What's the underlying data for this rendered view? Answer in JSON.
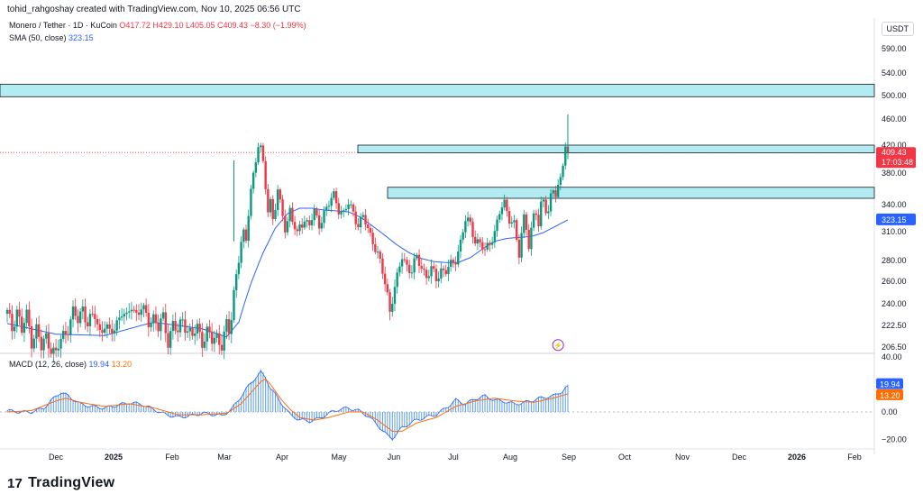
{
  "header": {
    "credit": "tohid_rahgoshay created with TradingView.com, Nov 10, 2025 06:56 UTC"
  },
  "legend": {
    "symbol": "Monero / Tether · 1D · KuCoin",
    "ohlc": "O417.72 H429.10 L405.05 C409.43 −8.30 (−1.99%)",
    "sma_label": "SMA (50, close)",
    "sma_value": "323.15"
  },
  "currency": "USDT",
  "macd_legend": {
    "label": "MACD (12, 26, close)",
    "macd": "19.94",
    "signal": "13.20"
  },
  "brand": {
    "name": "TradingView",
    "logo": "17"
  },
  "colors": {
    "up": "#089981",
    "down": "#f23645",
    "sma": "#2962ff",
    "zone_fill": "#b2ebf2",
    "macd": "#2962ff",
    "signal": "#ff6d00",
    "price_tag": "#f23645"
  },
  "chart_data": [
    {
      "type": "candlestick",
      "title": "Monero / Tether · 1D · KuCoin",
      "x_labels": [
        "Dec",
        "2025",
        "Feb",
        "Mar",
        "Apr",
        "May",
        "Jun",
        "Jul",
        "Aug",
        "Sep",
        "Oct",
        "Nov",
        "Dec",
        "2026",
        "Feb"
      ],
      "y_ticks": [
        "590.00",
        "540.00",
        "500.00",
        "460.00",
        "420.00",
        "380.00",
        "340.00",
        "310.00",
        "280.00",
        "260.00",
        "240.00",
        "222.50",
        "206.50"
      ],
      "y_tick_values": [
        590,
        540,
        500,
        460,
        420,
        380,
        340,
        310,
        280,
        260,
        240,
        222.5,
        206.5
      ],
      "ylim": [
        196,
        620
      ],
      "zones": [
        {
          "low": 498,
          "high": 520
        },
        {
          "low": 409,
          "high": 420
        },
        {
          "low": 348,
          "high": 362
        }
      ],
      "last_price": {
        "value": 409.43,
        "label": "409.43",
        "countdown": "17:03:48"
      },
      "sma_tag": {
        "value": 323.15,
        "label": "323.15"
      },
      "annotations": [
        "lightning-marker"
      ],
      "price_path": [
        [
          0,
          232
        ],
        [
          2,
          220
        ],
        [
          4,
          236
        ],
        [
          6,
          218
        ],
        [
          8,
          230
        ],
        [
          10,
          212
        ],
        [
          12,
          220
        ],
        [
          14,
          205
        ],
        [
          16,
          214
        ],
        [
          20,
          200
        ],
        [
          22,
          212
        ],
        [
          25,
          222
        ],
        [
          27,
          232
        ],
        [
          29,
          226
        ],
        [
          31,
          238
        ],
        [
          33,
          224
        ],
        [
          36,
          230
        ],
        [
          38,
          218
        ],
        [
          40,
          224
        ],
        [
          42,
          214
        ],
        [
          44,
          222
        ],
        [
          47,
          234
        ],
        [
          49,
          226
        ],
        [
          51,
          240
        ],
        [
          53,
          232
        ],
        [
          55,
          236
        ],
        [
          58,
          226
        ],
        [
          60,
          230
        ],
        [
          62,
          220
        ],
        [
          64,
          228
        ],
        [
          66,
          212
        ],
        [
          68,
          224
        ],
        [
          70,
          216
        ],
        [
          72,
          228
        ],
        [
          74,
          220
        ],
        [
          76,
          214
        ],
        [
          78,
          220
        ],
        [
          80,
          212
        ],
        [
          82,
          218
        ],
        [
          84,
          210
        ],
        [
          86,
          214
        ],
        [
          88,
          210
        ],
        [
          90,
          222
        ],
        [
          91,
          216
        ],
        [
          92,
          228
        ],
        [
          93,
          250
        ],
        [
          94,
          268
        ],
        [
          95,
          284
        ],
        [
          96,
          300
        ],
        [
          97,
          306
        ],
        [
          98,
          298
        ],
        [
          99,
          330
        ],
        [
          100,
          360
        ],
        [
          101,
          380
        ],
        [
          102,
          400
        ],
        [
          103,
          420
        ],
        [
          104,
          414
        ],
        [
          105,
          392
        ],
        [
          106,
          362
        ],
        [
          107,
          334
        ],
        [
          108,
          346
        ],
        [
          109,
          326
        ],
        [
          110,
          338
        ],
        [
          111,
          356
        ],
        [
          112,
          340
        ],
        [
          113,
          328
        ],
        [
          114,
          314
        ],
        [
          115,
          322
        ],
        [
          116,
          336
        ],
        [
          117,
          324
        ],
        [
          118,
          312
        ],
        [
          119,
          304
        ],
        [
          120,
          316
        ],
        [
          122,
          324
        ],
        [
          124,
          318
        ],
        [
          126,
          330
        ],
        [
          128,
          318
        ],
        [
          130,
          332
        ],
        [
          132,
          340
        ],
        [
          134,
          352
        ],
        [
          136,
          336
        ],
        [
          138,
          330
        ],
        [
          140,
          340
        ],
        [
          142,
          332
        ],
        [
          144,
          318
        ],
        [
          146,
          326
        ],
        [
          148,
          312
        ],
        [
          150,
          302
        ],
        [
          152,
          286
        ],
        [
          154,
          268
        ],
        [
          155,
          258
        ],
        [
          156,
          248
        ],
        [
          157,
          236
        ],
        [
          158,
          246
        ],
        [
          160,
          262
        ],
        [
          162,
          284
        ],
        [
          164,
          276
        ],
        [
          166,
          270
        ],
        [
          168,
          282
        ],
        [
          170,
          274
        ],
        [
          172,
          266
        ],
        [
          174,
          270
        ],
        [
          176,
          262
        ],
        [
          178,
          272
        ],
        [
          180,
          270
        ],
        [
          182,
          274
        ],
        [
          184,
          282
        ],
        [
          186,
          300
        ],
        [
          188,
          322
        ],
        [
          190,
          318
        ],
        [
          192,
          302
        ],
        [
          194,
          298
        ],
        [
          196,
          288
        ],
        [
          198,
          300
        ],
        [
          200,
          310
        ],
        [
          202,
          330
        ],
        [
          204,
          342
        ],
        [
          206,
          326
        ],
        [
          208,
          318
        ],
        [
          209,
          300
        ],
        [
          210,
          284
        ],
        [
          211,
          306
        ],
        [
          212,
          328
        ],
        [
          213,
          318
        ],
        [
          214,
          296
        ],
        [
          215,
          310
        ],
        [
          216,
          326
        ],
        [
          217,
          330
        ],
        [
          218,
          316
        ],
        [
          219,
          342
        ],
        [
          220,
          350
        ],
        [
          221,
          336
        ],
        [
          222,
          330
        ],
        [
          223,
          348
        ],
        [
          224,
          358
        ],
        [
          225,
          352
        ],
        [
          226,
          364
        ],
        [
          227,
          376
        ],
        [
          228,
          396
        ],
        [
          229,
          418
        ],
        [
          230,
          409.43
        ]
      ],
      "sma_path": [
        [
          0,
          224
        ],
        [
          20,
          216
        ],
        [
          40,
          215
        ],
        [
          60,
          225
        ],
        [
          80,
          220
        ],
        [
          90,
          214
        ],
        [
          95,
          225
        ],
        [
          100,
          258
        ],
        [
          105,
          288
        ],
        [
          110,
          314
        ],
        [
          115,
          330
        ],
        [
          120,
          336
        ],
        [
          125,
          336
        ],
        [
          130,
          334
        ],
        [
          135,
          333
        ],
        [
          140,
          332
        ],
        [
          145,
          326
        ],
        [
          150,
          316
        ],
        [
          155,
          306
        ],
        [
          160,
          296
        ],
        [
          165,
          288
        ],
        [
          170,
          282
        ],
        [
          175,
          279
        ],
        [
          180,
          278
        ],
        [
          185,
          278
        ],
        [
          190,
          283
        ],
        [
          195,
          292
        ],
        [
          200,
          300
        ],
        [
          205,
          303
        ],
        [
          210,
          304
        ],
        [
          215,
          305
        ],
        [
          220,
          309
        ],
        [
          225,
          316
        ],
        [
          230,
          323.15
        ]
      ]
    },
    {
      "type": "macd",
      "title": "MACD (12, 26, close)",
      "y_ticks": [
        "40.00",
        "0.00",
        "−20.00"
      ],
      "y_tick_values": [
        40,
        0,
        -20
      ],
      "ylim": [
        -27,
        42
      ],
      "last_macd": {
        "value": 19.94,
        "label": "19.94"
      },
      "last_signal": {
        "value": 13.2,
        "label": "13.20"
      },
      "hist_path": [
        [
          0,
          1
        ],
        [
          5,
          0
        ],
        [
          10,
          0
        ],
        [
          15,
          3
        ],
        [
          20,
          12
        ],
        [
          22,
          15
        ],
        [
          25,
          12
        ],
        [
          30,
          6
        ],
        [
          35,
          4
        ],
        [
          40,
          3
        ],
        [
          45,
          5
        ],
        [
          50,
          7
        ],
        [
          55,
          6
        ],
        [
          60,
          2
        ],
        [
          65,
          -2
        ],
        [
          70,
          -4
        ],
        [
          75,
          -3
        ],
        [
          80,
          -1
        ],
        [
          85,
          -2
        ],
        [
          88,
          -3
        ],
        [
          92,
          2
        ],
        [
          96,
          12
        ],
        [
          100,
          22
        ],
        [
          104,
          30
        ],
        [
          106,
          26
        ],
        [
          108,
          18
        ],
        [
          112,
          8
        ],
        [
          116,
          -2
        ],
        [
          120,
          -6
        ],
        [
          124,
          -7
        ],
        [
          128,
          -5
        ],
        [
          132,
          -1
        ],
        [
          136,
          2
        ],
        [
          140,
          3
        ],
        [
          144,
          1
        ],
        [
          148,
          -3
        ],
        [
          152,
          -10
        ],
        [
          156,
          -18
        ],
        [
          158,
          -20
        ],
        [
          162,
          -12
        ],
        [
          168,
          -6
        ],
        [
          176,
          -2
        ],
        [
          180,
          3
        ],
        [
          184,
          9
        ],
        [
          188,
          6
        ],
        [
          192,
          10
        ],
        [
          196,
          12
        ],
        [
          200,
          9
        ],
        [
          204,
          8
        ],
        [
          208,
          6
        ],
        [
          212,
          7
        ],
        [
          216,
          9
        ],
        [
          220,
          11
        ],
        [
          224,
          12
        ],
        [
          228,
          16
        ],
        [
          230,
          20
        ]
      ],
      "signal_path": [
        [
          0,
          0
        ],
        [
          10,
          1
        ],
        [
          20,
          8
        ],
        [
          24,
          10
        ],
        [
          30,
          7
        ],
        [
          40,
          4
        ],
        [
          50,
          6
        ],
        [
          60,
          3
        ],
        [
          70,
          -2
        ],
        [
          80,
          -2
        ],
        [
          90,
          -1
        ],
        [
          96,
          6
        ],
        [
          100,
          14
        ],
        [
          104,
          22
        ],
        [
          106,
          24
        ],
        [
          108,
          20
        ],
        [
          112,
          10
        ],
        [
          116,
          2
        ],
        [
          120,
          -4
        ],
        [
          126,
          -6
        ],
        [
          132,
          -4
        ],
        [
          140,
          0
        ],
        [
          146,
          0
        ],
        [
          152,
          -6
        ],
        [
          158,
          -14
        ],
        [
          162,
          -14
        ],
        [
          168,
          -8
        ],
        [
          176,
          -4
        ],
        [
          184,
          4
        ],
        [
          192,
          8
        ],
        [
          200,
          10
        ],
        [
          208,
          8
        ],
        [
          216,
          7
        ],
        [
          224,
          10
        ],
        [
          230,
          13.2
        ]
      ]
    }
  ]
}
